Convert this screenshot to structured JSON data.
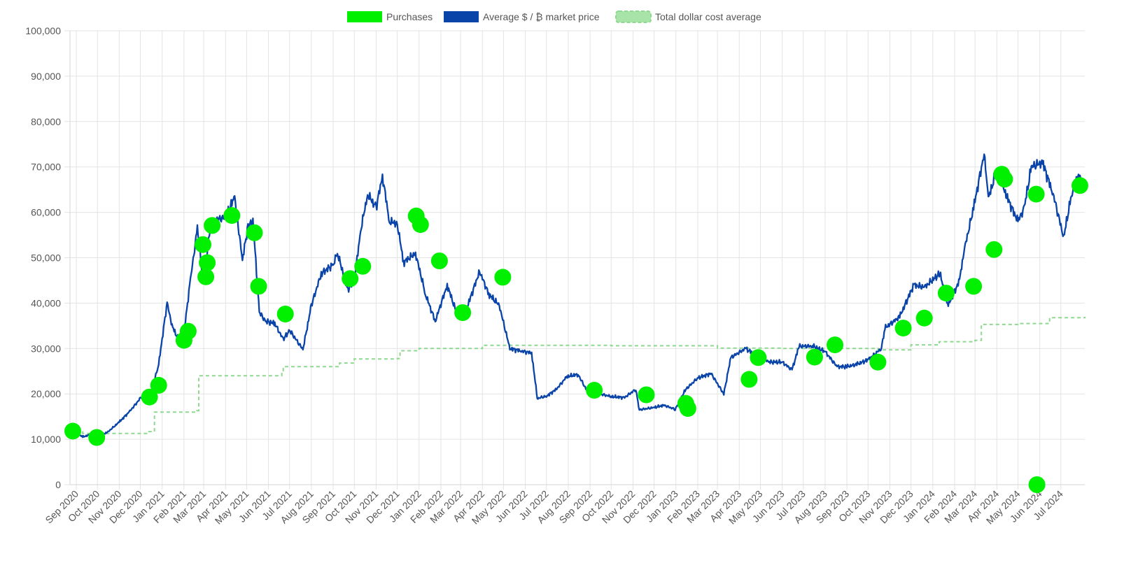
{
  "chart_data": {
    "type": "line",
    "title": "",
    "xlabel": "",
    "ylabel": "",
    "x_range": [
      "2020-08-23",
      "2024-08-04"
    ],
    "ylim": [
      0,
      100000
    ],
    "y_ticks": [
      0,
      10000,
      20000,
      30000,
      40000,
      50000,
      60000,
      70000,
      80000,
      90000,
      100000
    ],
    "y_tick_labels": [
      "0",
      "10,000",
      "20,000",
      "30,000",
      "40,000",
      "50,000",
      "60,000",
      "70,000",
      "80,000",
      "90,000",
      "100,000"
    ],
    "x_ticks": [
      "2020-09-01",
      "2020-10-01",
      "2020-11-01",
      "2020-12-01",
      "2021-01-01",
      "2021-02-01",
      "2021-03-01",
      "2021-04-01",
      "2021-05-01",
      "2021-06-01",
      "2021-07-01",
      "2021-08-01",
      "2021-09-01",
      "2021-10-01",
      "2021-11-01",
      "2021-12-01",
      "2022-01-01",
      "2022-02-01",
      "2022-03-01",
      "2022-04-01",
      "2022-05-01",
      "2022-06-01",
      "2022-07-01",
      "2022-08-01",
      "2022-09-01",
      "2022-10-01",
      "2022-11-01",
      "2022-12-01",
      "2023-01-01",
      "2023-02-01",
      "2023-03-01",
      "2023-04-01",
      "2023-05-01",
      "2023-06-01",
      "2023-07-01",
      "2023-08-01",
      "2023-09-01",
      "2023-10-01",
      "2023-11-01",
      "2023-12-01",
      "2024-01-01",
      "2024-02-01",
      "2024-03-01",
      "2024-04-01",
      "2024-05-01",
      "2024-06-01",
      "2024-07-01"
    ],
    "x_tick_labels": [
      "Sep 2020",
      "Oct 2020",
      "Nov 2020",
      "Dec 2020",
      "Jan 2021",
      "Feb 2021",
      "Mar 2021",
      "Apr 2021",
      "May 2021",
      "Jun 2021",
      "Jul 2021",
      "Aug 2021",
      "Sep 2021",
      "Oct 2021",
      "Nov 2021",
      "Dec 2021",
      "Jan 2022",
      "Feb 2022",
      "Mar 2022",
      "Apr 2022",
      "May 2022",
      "Jun 2022",
      "Jul 2022",
      "Aug 2022",
      "Sep 2022",
      "Oct 2022",
      "Nov 2022",
      "Dec 2022",
      "Jan 2023",
      "Feb 2023",
      "Mar 2023",
      "Apr 2023",
      "May 2023",
      "Jun 2023",
      "Jul 2023",
      "Aug 2023",
      "Sep 2023",
      "Oct 2023",
      "Nov 2023",
      "Dec 2023",
      "Jan 2024",
      "Feb 2024",
      "Mar 2024",
      "Apr 2024",
      "May 2024",
      "Jun 2024",
      "Jul 2024"
    ],
    "grid": true,
    "legend_position": "top-center",
    "legend": [
      {
        "label": "Purchases",
        "color": "#00f000",
        "style": "fill"
      },
      {
        "label": "Average $ / ₿ market price",
        "color": "#0a44a8",
        "style": "line"
      },
      {
        "label": "Total dollar cost average",
        "color": "#8fd88f",
        "style": "dashed"
      }
    ],
    "series": [
      {
        "name": "Average $ / ₿ market price",
        "type": "line",
        "color": "#0a44a8",
        "points": [
          [
            "2020-08-23",
            11700
          ],
          [
            "2020-09-01",
            11500
          ],
          [
            "2020-09-10",
            10500
          ],
          [
            "2020-09-20",
            11000
          ],
          [
            "2020-10-01",
            10700
          ],
          [
            "2020-10-15",
            11500
          ],
          [
            "2020-11-01",
            13800
          ],
          [
            "2020-11-15",
            16000
          ],
          [
            "2020-12-01",
            19000
          ],
          [
            "2020-12-15",
            19400
          ],
          [
            "2020-12-27",
            26500
          ],
          [
            "2021-01-08",
            40000
          ],
          [
            "2021-01-15",
            35000
          ],
          [
            "2021-01-27",
            31000
          ],
          [
            "2021-02-01",
            33500
          ],
          [
            "2021-02-10",
            45000
          ],
          [
            "2021-02-20",
            56500
          ],
          [
            "2021-02-28",
            45000
          ],
          [
            "2021-03-10",
            56000
          ],
          [
            "2021-03-20",
            58500
          ],
          [
            "2021-04-01",
            58800
          ],
          [
            "2021-04-14",
            63500
          ],
          [
            "2021-04-25",
            49500
          ],
          [
            "2021-05-03",
            57000
          ],
          [
            "2021-05-10",
            58000
          ],
          [
            "2021-05-19",
            38000
          ],
          [
            "2021-05-28",
            36000
          ],
          [
            "2021-06-10",
            35500
          ],
          [
            "2021-06-22",
            32000
          ],
          [
            "2021-07-01",
            34000
          ],
          [
            "2021-07-20",
            29800
          ],
          [
            "2021-08-01",
            39500
          ],
          [
            "2021-08-15",
            46500
          ],
          [
            "2021-09-01",
            48500
          ],
          [
            "2021-09-07",
            51000
          ],
          [
            "2021-09-22",
            43000
          ],
          [
            "2021-10-01",
            45000
          ],
          [
            "2021-10-10",
            56000
          ],
          [
            "2021-10-20",
            64000
          ],
          [
            "2021-11-01",
            61000
          ],
          [
            "2021-11-10",
            68000
          ],
          [
            "2021-11-20",
            58000
          ],
          [
            "2021-12-01",
            57500
          ],
          [
            "2021-12-10",
            49000
          ],
          [
            "2021-12-27",
            51000
          ],
          [
            "2022-01-10",
            42000
          ],
          [
            "2022-01-24",
            36000
          ],
          [
            "2022-02-10",
            44000
          ],
          [
            "2022-02-24",
            37500
          ],
          [
            "2022-03-10",
            39000
          ],
          [
            "2022-03-28",
            47000
          ],
          [
            "2022-04-10",
            42000
          ],
          [
            "2022-04-25",
            39500
          ],
          [
            "2022-05-10",
            30000
          ],
          [
            "2022-05-25",
            29500
          ],
          [
            "2022-06-10",
            29000
          ],
          [
            "2022-06-18",
            19000
          ],
          [
            "2022-07-01",
            19500
          ],
          [
            "2022-07-15",
            21000
          ],
          [
            "2022-07-30",
            23800
          ],
          [
            "2022-08-15",
            24300
          ],
          [
            "2022-08-30",
            20000
          ],
          [
            "2022-09-15",
            20000
          ],
          [
            "2022-10-01",
            19400
          ],
          [
            "2022-10-20",
            19200
          ],
          [
            "2022-11-05",
            21000
          ],
          [
            "2022-11-10",
            16500
          ],
          [
            "2022-12-01",
            17000
          ],
          [
            "2022-12-15",
            17500
          ],
          [
            "2022-12-31",
            16600
          ],
          [
            "2023-01-15",
            21000
          ],
          [
            "2023-02-01",
            23500
          ],
          [
            "2023-02-20",
            24500
          ],
          [
            "2023-03-10",
            20000
          ],
          [
            "2023-03-20",
            28000
          ],
          [
            "2023-04-10",
            30000
          ],
          [
            "2023-04-25",
            28500
          ],
          [
            "2023-05-15",
            27000
          ],
          [
            "2023-06-01",
            27000
          ],
          [
            "2023-06-15",
            25300
          ],
          [
            "2023-06-25",
            30500
          ],
          [
            "2023-07-15",
            30500
          ],
          [
            "2023-08-01",
            29300
          ],
          [
            "2023-08-18",
            26000
          ],
          [
            "2023-09-01",
            26000
          ],
          [
            "2023-09-15",
            26500
          ],
          [
            "2023-10-01",
            27500
          ],
          [
            "2023-10-20",
            30000
          ],
          [
            "2023-10-25",
            34500
          ],
          [
            "2023-11-15",
            37000
          ],
          [
            "2023-12-05",
            44000
          ],
          [
            "2023-12-20",
            43500
          ],
          [
            "2024-01-11",
            46500
          ],
          [
            "2024-01-23",
            39500
          ],
          [
            "2024-02-08",
            45000
          ],
          [
            "2024-02-15",
            52000
          ],
          [
            "2024-02-28",
            61000
          ],
          [
            "2024-03-14",
            73000
          ],
          [
            "2024-03-20",
            63000
          ],
          [
            "2024-04-01",
            69500
          ],
          [
            "2024-04-15",
            63500
          ],
          [
            "2024-05-01",
            58000
          ],
          [
            "2024-05-10",
            61000
          ],
          [
            "2024-05-20",
            70000
          ],
          [
            "2024-06-05",
            71000
          ],
          [
            "2024-06-20",
            64000
          ],
          [
            "2024-07-05",
            54500
          ],
          [
            "2024-07-15",
            63000
          ],
          [
            "2024-07-25",
            68000
          ],
          [
            "2024-08-04",
            66000
          ]
        ]
      },
      {
        "name": "Total dollar cost average",
        "type": "step-line",
        "style": "dashed",
        "color": "#8fd88f",
        "points": [
          [
            "2020-08-23",
            11700
          ],
          [
            "2020-09-10",
            11300
          ],
          [
            "2020-12-12",
            11700
          ],
          [
            "2020-12-21",
            16000
          ],
          [
            "2021-02-19",
            16300
          ],
          [
            "2021-02-22",
            24000
          ],
          [
            "2021-06-20",
            24500
          ],
          [
            "2021-06-22",
            26000
          ],
          [
            "2021-09-10",
            26800
          ],
          [
            "2021-10-01",
            27700
          ],
          [
            "2021-12-01",
            27800
          ],
          [
            "2021-12-05",
            29500
          ],
          [
            "2022-01-01",
            30000
          ],
          [
            "2022-04-01",
            30700
          ],
          [
            "2022-10-01",
            30600
          ],
          [
            "2023-03-01",
            30100
          ],
          [
            "2023-06-01",
            30000
          ],
          [
            "2023-09-10",
            30000
          ],
          [
            "2023-10-15",
            29700
          ],
          [
            "2023-12-01",
            30800
          ],
          [
            "2024-01-10",
            31500
          ],
          [
            "2024-03-01",
            31800
          ],
          [
            "2024-03-10",
            35300
          ],
          [
            "2024-05-01",
            35500
          ],
          [
            "2024-06-15",
            36800
          ],
          [
            "2024-08-04",
            37000
          ]
        ]
      },
      {
        "name": "Purchases",
        "type": "scatter",
        "color": "#00f000",
        "points": [
          [
            "2020-08-27",
            11800
          ],
          [
            "2020-09-30",
            10400
          ],
          [
            "2020-12-14",
            19300
          ],
          [
            "2020-12-27",
            21900
          ],
          [
            "2021-02-01",
            31800
          ],
          [
            "2021-02-07",
            33800
          ],
          [
            "2021-02-28",
            52900
          ],
          [
            "2021-03-04",
            45800
          ],
          [
            "2021-03-06",
            48900
          ],
          [
            "2021-03-13",
            57100
          ],
          [
            "2021-04-10",
            59300
          ],
          [
            "2021-05-12",
            55500
          ],
          [
            "2021-05-18",
            43700
          ],
          [
            "2021-06-25",
            37600
          ],
          [
            "2021-09-25",
            45400
          ],
          [
            "2021-10-13",
            48100
          ],
          [
            "2021-12-28",
            59200
          ],
          [
            "2022-01-03",
            57300
          ],
          [
            "2022-01-30",
            49300
          ],
          [
            "2022-03-04",
            37900
          ],
          [
            "2022-04-30",
            45700
          ],
          [
            "2022-09-07",
            20800
          ],
          [
            "2022-11-20",
            19800
          ],
          [
            "2023-01-15",
            17900
          ],
          [
            "2023-01-18",
            16800
          ],
          [
            "2023-04-15",
            23200
          ],
          [
            "2023-04-28",
            28000
          ],
          [
            "2023-07-17",
            28100
          ],
          [
            "2023-08-15",
            30800
          ],
          [
            "2023-10-15",
            27000
          ],
          [
            "2023-11-20",
            34500
          ],
          [
            "2023-12-20",
            36700
          ],
          [
            "2024-01-20",
            42200
          ],
          [
            "2024-02-28",
            43700
          ],
          [
            "2024-03-28",
            51800
          ],
          [
            "2024-04-08",
            68400
          ],
          [
            "2024-04-12",
            67300
          ],
          [
            "2024-05-27",
            64000
          ],
          [
            "2024-05-28",
            0
          ],
          [
            "2024-07-28",
            65900
          ]
        ]
      }
    ]
  }
}
